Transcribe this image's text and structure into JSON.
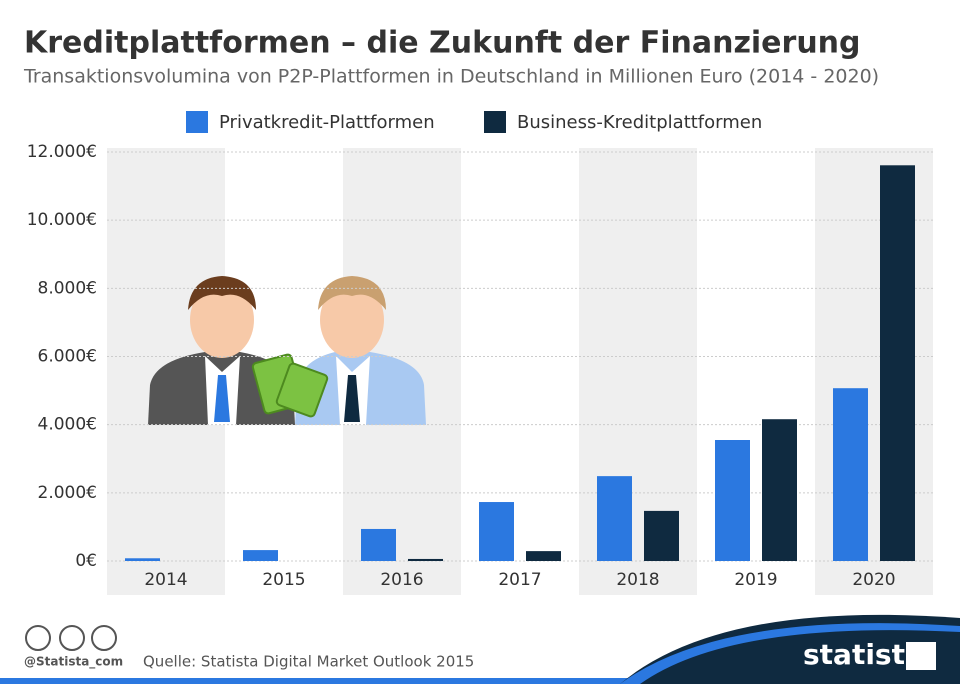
{
  "chart_data": {
    "type": "bar",
    "title": "Kreditplattformen – die Zukunft der Finanzierung",
    "subtitle": "Transaktionsvolumina von P2P-Plattformen in Deutschland in Millionen Euro (2014 - 2020)",
    "categories": [
      "2014",
      "2015",
      "2016",
      "2017",
      "2018",
      "2019",
      "2020"
    ],
    "series": [
      {
        "name": "Privatkredit-Plattformen",
        "color": "#2b78e0",
        "values": [
          80,
          320,
          940,
          1730,
          2490,
          3550,
          5070
        ]
      },
      {
        "name": "Business-Kreditplattformen",
        "color": "#0f2a40",
        "values": [
          0,
          0,
          60,
          290,
          1470,
          4160,
          11610
        ]
      }
    ],
    "ylim": [
      0,
      12000
    ],
    "yticks": [
      {
        "value": 0,
        "label": "0€"
      },
      {
        "value": 2000,
        "label": "2.000€"
      },
      {
        "value": 4000,
        "label": "4.000€"
      },
      {
        "value": 6000,
        "label": "6.000€"
      },
      {
        "value": 8000,
        "label": "8.000€"
      },
      {
        "value": 10000,
        "label": "10.000€"
      },
      {
        "value": 12000,
        "label": "12.000€"
      }
    ],
    "grid": true,
    "legend": "top"
  },
  "footer": {
    "handle": "@Statista_com",
    "source": "Quelle: Statista Digital Market Outlook 2015",
    "brand": "statista"
  }
}
